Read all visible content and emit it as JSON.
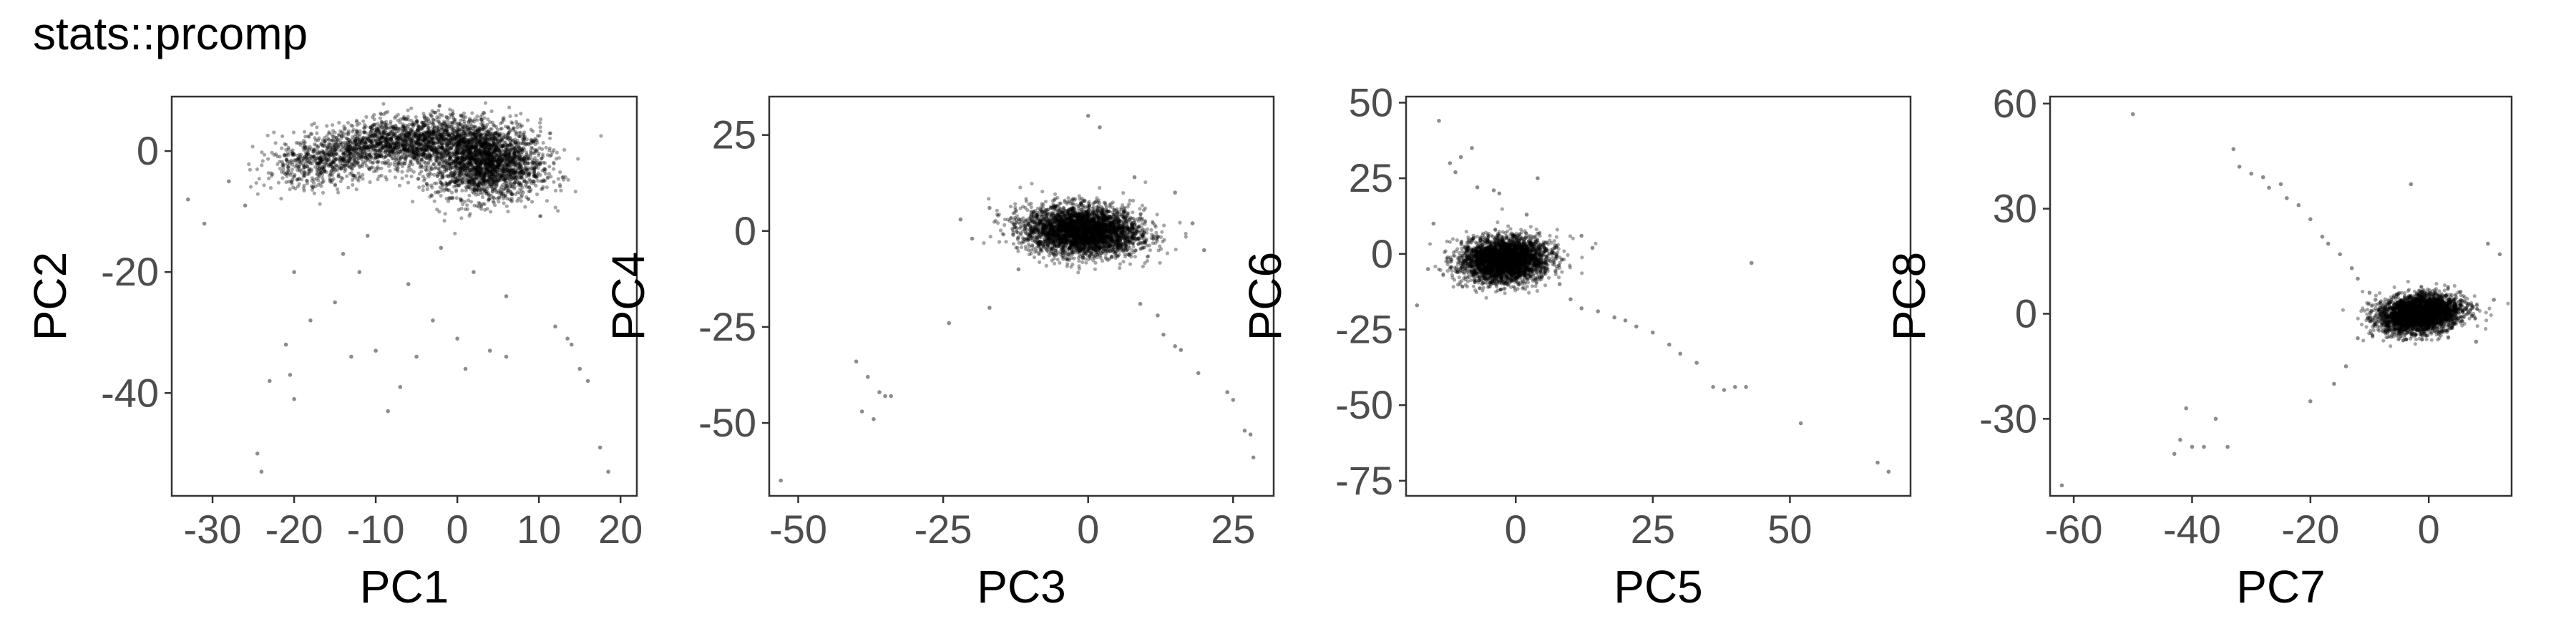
{
  "figure": {
    "title": "stats::prcomp",
    "point_color": "#000000",
    "text_color": "#4d4d4d",
    "label_color": "#000000"
  },
  "chart_data": [
    {
      "type": "scatter",
      "title": "",
      "xlabel": "PC1",
      "ylabel": "PC2",
      "xlim": [
        -35,
        22
      ],
      "ylim": [
        -57,
        9
      ],
      "xticks": [
        -30,
        -20,
        -10,
        0,
        10,
        20
      ],
      "yticks": [
        0,
        -20,
        -40
      ],
      "grid": false,
      "legend": "none",
      "clusters": [
        {
          "center": [
            3.5,
            -2
          ],
          "spread": [
            3.5,
            3
          ],
          "count": 2200,
          "rotation": -0.15
        },
        {
          "center": [
            -6,
            1.5
          ],
          "spread": [
            5.5,
            2
          ],
          "count": 1700,
          "rotation": 0.12
        },
        {
          "center": [
            -17,
            -2
          ],
          "spread": [
            3.5,
            2
          ],
          "count": 500,
          "rotation": 0.2
        }
      ],
      "points": [
        [
          -33,
          -8
        ],
        [
          -31,
          -12
        ],
        [
          -24.5,
          -50
        ],
        [
          -24,
          -53
        ],
        [
          -23,
          -38
        ],
        [
          -21,
          -32
        ],
        [
          -20.5,
          -37
        ],
        [
          -20,
          -41
        ],
        [
          -18,
          -28
        ],
        [
          -15,
          -25
        ],
        [
          -13,
          -34
        ],
        [
          -10,
          -33
        ],
        [
          -8.5,
          -43
        ],
        [
          -7,
          -39
        ],
        [
          -5,
          -34
        ],
        [
          -3,
          -28
        ],
        [
          0,
          -31
        ],
        [
          1,
          -36
        ],
        [
          4,
          -33
        ],
        [
          6,
          -34
        ],
        [
          12,
          -29
        ],
        [
          13.5,
          -31
        ],
        [
          14,
          -32
        ],
        [
          15,
          -36
        ],
        [
          16,
          -38
        ],
        [
          17.5,
          -49
        ],
        [
          18.5,
          -53
        ],
        [
          -26,
          -9
        ],
        [
          -28,
          -5
        ],
        [
          -14,
          -17
        ],
        [
          -12,
          -20
        ],
        [
          -20,
          -20
        ],
        [
          -6,
          -22
        ],
        [
          -11,
          -14
        ],
        [
          2,
          -20
        ],
        [
          6,
          -24
        ],
        [
          -2,
          -16
        ]
      ]
    },
    {
      "type": "scatter",
      "title": "",
      "xlabel": "PC3",
      "ylabel": "PC4",
      "xlim": [
        -55,
        32
      ],
      "ylim": [
        -69,
        35
      ],
      "xticks": [
        -50,
        -25,
        0,
        25
      ],
      "yticks": [
        25,
        0,
        -25,
        -50
      ],
      "grid": false,
      "legend": "none",
      "clusters": [
        {
          "center": [
            -1,
            0
          ],
          "spread": [
            5,
            3.2
          ],
          "count": 3500,
          "rotation": -0.1
        }
      ],
      "points": [
        [
          -53,
          -65
        ],
        [
          -40,
          -34
        ],
        [
          -39,
          -47
        ],
        [
          -38,
          -38
        ],
        [
          -37,
          -49
        ],
        [
          -36,
          -42
        ],
        [
          -35,
          -43
        ],
        [
          -34,
          -43
        ],
        [
          -24,
          -24
        ],
        [
          -17,
          -20
        ],
        [
          0,
          30
        ],
        [
          2,
          27
        ],
        [
          9,
          -19
        ],
        [
          12,
          -22
        ],
        [
          13,
          -27
        ],
        [
          15,
          -30
        ],
        [
          16,
          -31
        ],
        [
          19,
          -37
        ],
        [
          24,
          -42
        ],
        [
          25,
          -44
        ],
        [
          27,
          -52
        ],
        [
          28,
          -53
        ],
        [
          28.5,
          -59
        ],
        [
          -20,
          -2
        ],
        [
          -22,
          3
        ],
        [
          -17,
          6
        ],
        [
          15,
          10
        ],
        [
          18,
          2
        ],
        [
          20,
          -5
        ],
        [
          -12,
          -10
        ],
        [
          8,
          14
        ]
      ]
    },
    {
      "type": "scatter",
      "title": "",
      "xlabel": "PC5",
      "ylabel": "PC6",
      "xlim": [
        -20,
        72
      ],
      "ylim": [
        -80,
        52
      ],
      "xticks": [
        0,
        25,
        50
      ],
      "yticks": [
        50,
        25,
        0,
        -25,
        -50,
        -75
      ],
      "grid": false,
      "legend": "none",
      "clusters": [
        {
          "center": [
            -2,
            -2
          ],
          "spread": [
            4,
            3.5
          ],
          "count": 3400,
          "rotation": 0.5
        }
      ],
      "points": [
        [
          -18,
          -17
        ],
        [
          -14,
          44
        ],
        [
          -12,
          30
        ],
        [
          -11,
          27
        ],
        [
          -10,
          32
        ],
        [
          -8,
          35
        ],
        [
          -7,
          22
        ],
        [
          -4,
          21
        ],
        [
          -3,
          20
        ],
        [
          2,
          13
        ],
        [
          4,
          25
        ],
        [
          10,
          -15
        ],
        [
          12,
          -18
        ],
        [
          15,
          -19
        ],
        [
          18,
          -21
        ],
        [
          20,
          -22
        ],
        [
          22,
          -24
        ],
        [
          25,
          -26
        ],
        [
          28,
          -30
        ],
        [
          30,
          -33
        ],
        [
          33,
          -36
        ],
        [
          36,
          -44
        ],
        [
          38,
          -45
        ],
        [
          40,
          -44
        ],
        [
          42,
          -44
        ],
        [
          43,
          -3
        ],
        [
          52,
          -56
        ],
        [
          66,
          -69
        ],
        [
          68,
          -72
        ],
        [
          -16,
          -5
        ],
        [
          12,
          6
        ],
        [
          14,
          2
        ],
        [
          -15,
          10
        ],
        [
          8,
          -10
        ]
      ]
    },
    {
      "type": "scatter",
      "title": "",
      "xlabel": "PC7",
      "ylabel": "PC8",
      "xlim": [
        -64,
        14
      ],
      "ylim": [
        -52,
        62
      ],
      "xticks": [
        -60,
        -40,
        -20,
        0
      ],
      "yticks": [
        60,
        30,
        0,
        -30
      ],
      "grid": false,
      "legend": "none",
      "clusters": [
        {
          "center": [
            -1.5,
            0
          ],
          "spread": [
            3.5,
            2.6
          ],
          "count": 3300,
          "rotation": 0.35
        }
      ],
      "points": [
        [
          -62,
          -49
        ],
        [
          -50,
          57
        ],
        [
          -43,
          -40
        ],
        [
          -42,
          -36
        ],
        [
          -41,
          -27
        ],
        [
          -40,
          -38
        ],
        [
          -38,
          -38
        ],
        [
          -36,
          -30
        ],
        [
          -34,
          -38
        ],
        [
          -33,
          47
        ],
        [
          -32,
          42
        ],
        [
          -30,
          40
        ],
        [
          -28,
          39
        ],
        [
          -27,
          36
        ],
        [
          -25,
          37
        ],
        [
          -24,
          33
        ],
        [
          -22,
          31
        ],
        [
          -20,
          27
        ],
        [
          -18,
          22
        ],
        [
          -17,
          20
        ],
        [
          -15,
          17
        ],
        [
          -13,
          13
        ],
        [
          -12,
          10
        ],
        [
          -10,
          6
        ],
        [
          -10,
          -2
        ],
        [
          -12,
          -7
        ],
        [
          -14,
          -15
        ],
        [
          -16,
          -20
        ],
        [
          -20,
          -25
        ],
        [
          -3,
          37
        ],
        [
          10,
          20
        ],
        [
          12,
          17
        ],
        [
          11,
          4
        ],
        [
          -9,
          4
        ],
        [
          8,
          -8
        ]
      ]
    }
  ]
}
